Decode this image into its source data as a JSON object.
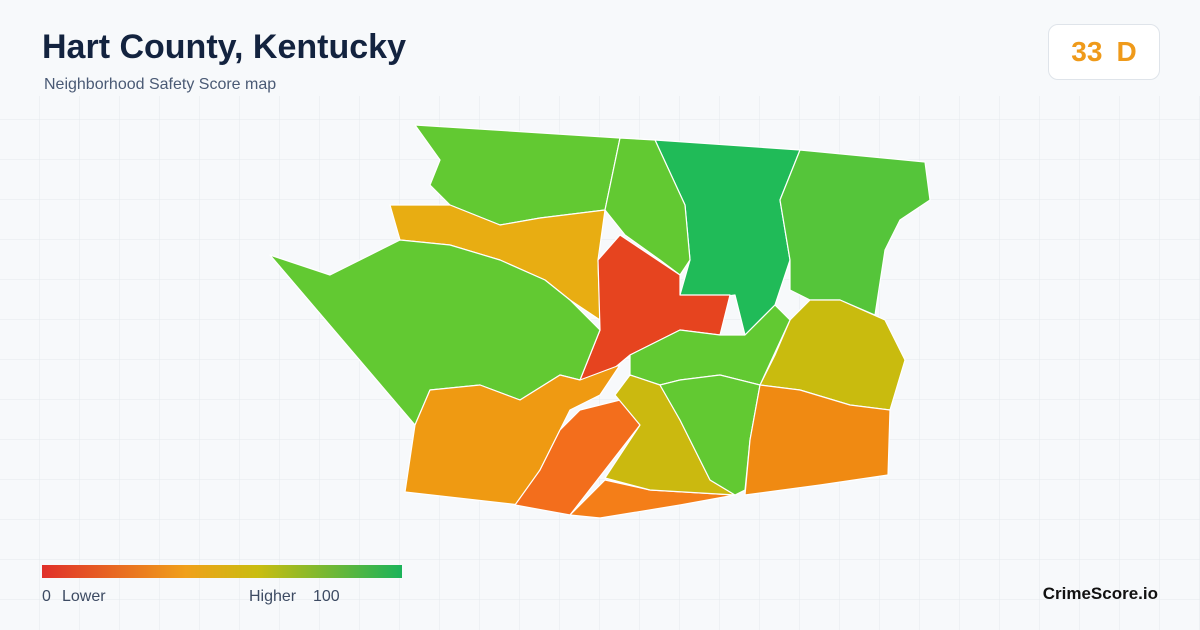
{
  "header": {
    "title": "Hart County, Kentucky",
    "subtitle": "Neighborhood Safety Score map"
  },
  "score": {
    "value": "33",
    "grade": "D"
  },
  "legend": {
    "min": "0",
    "min_label": "Lower",
    "max_label": "Higher",
    "max": "100"
  },
  "brand": "CrimeScore.io"
}
